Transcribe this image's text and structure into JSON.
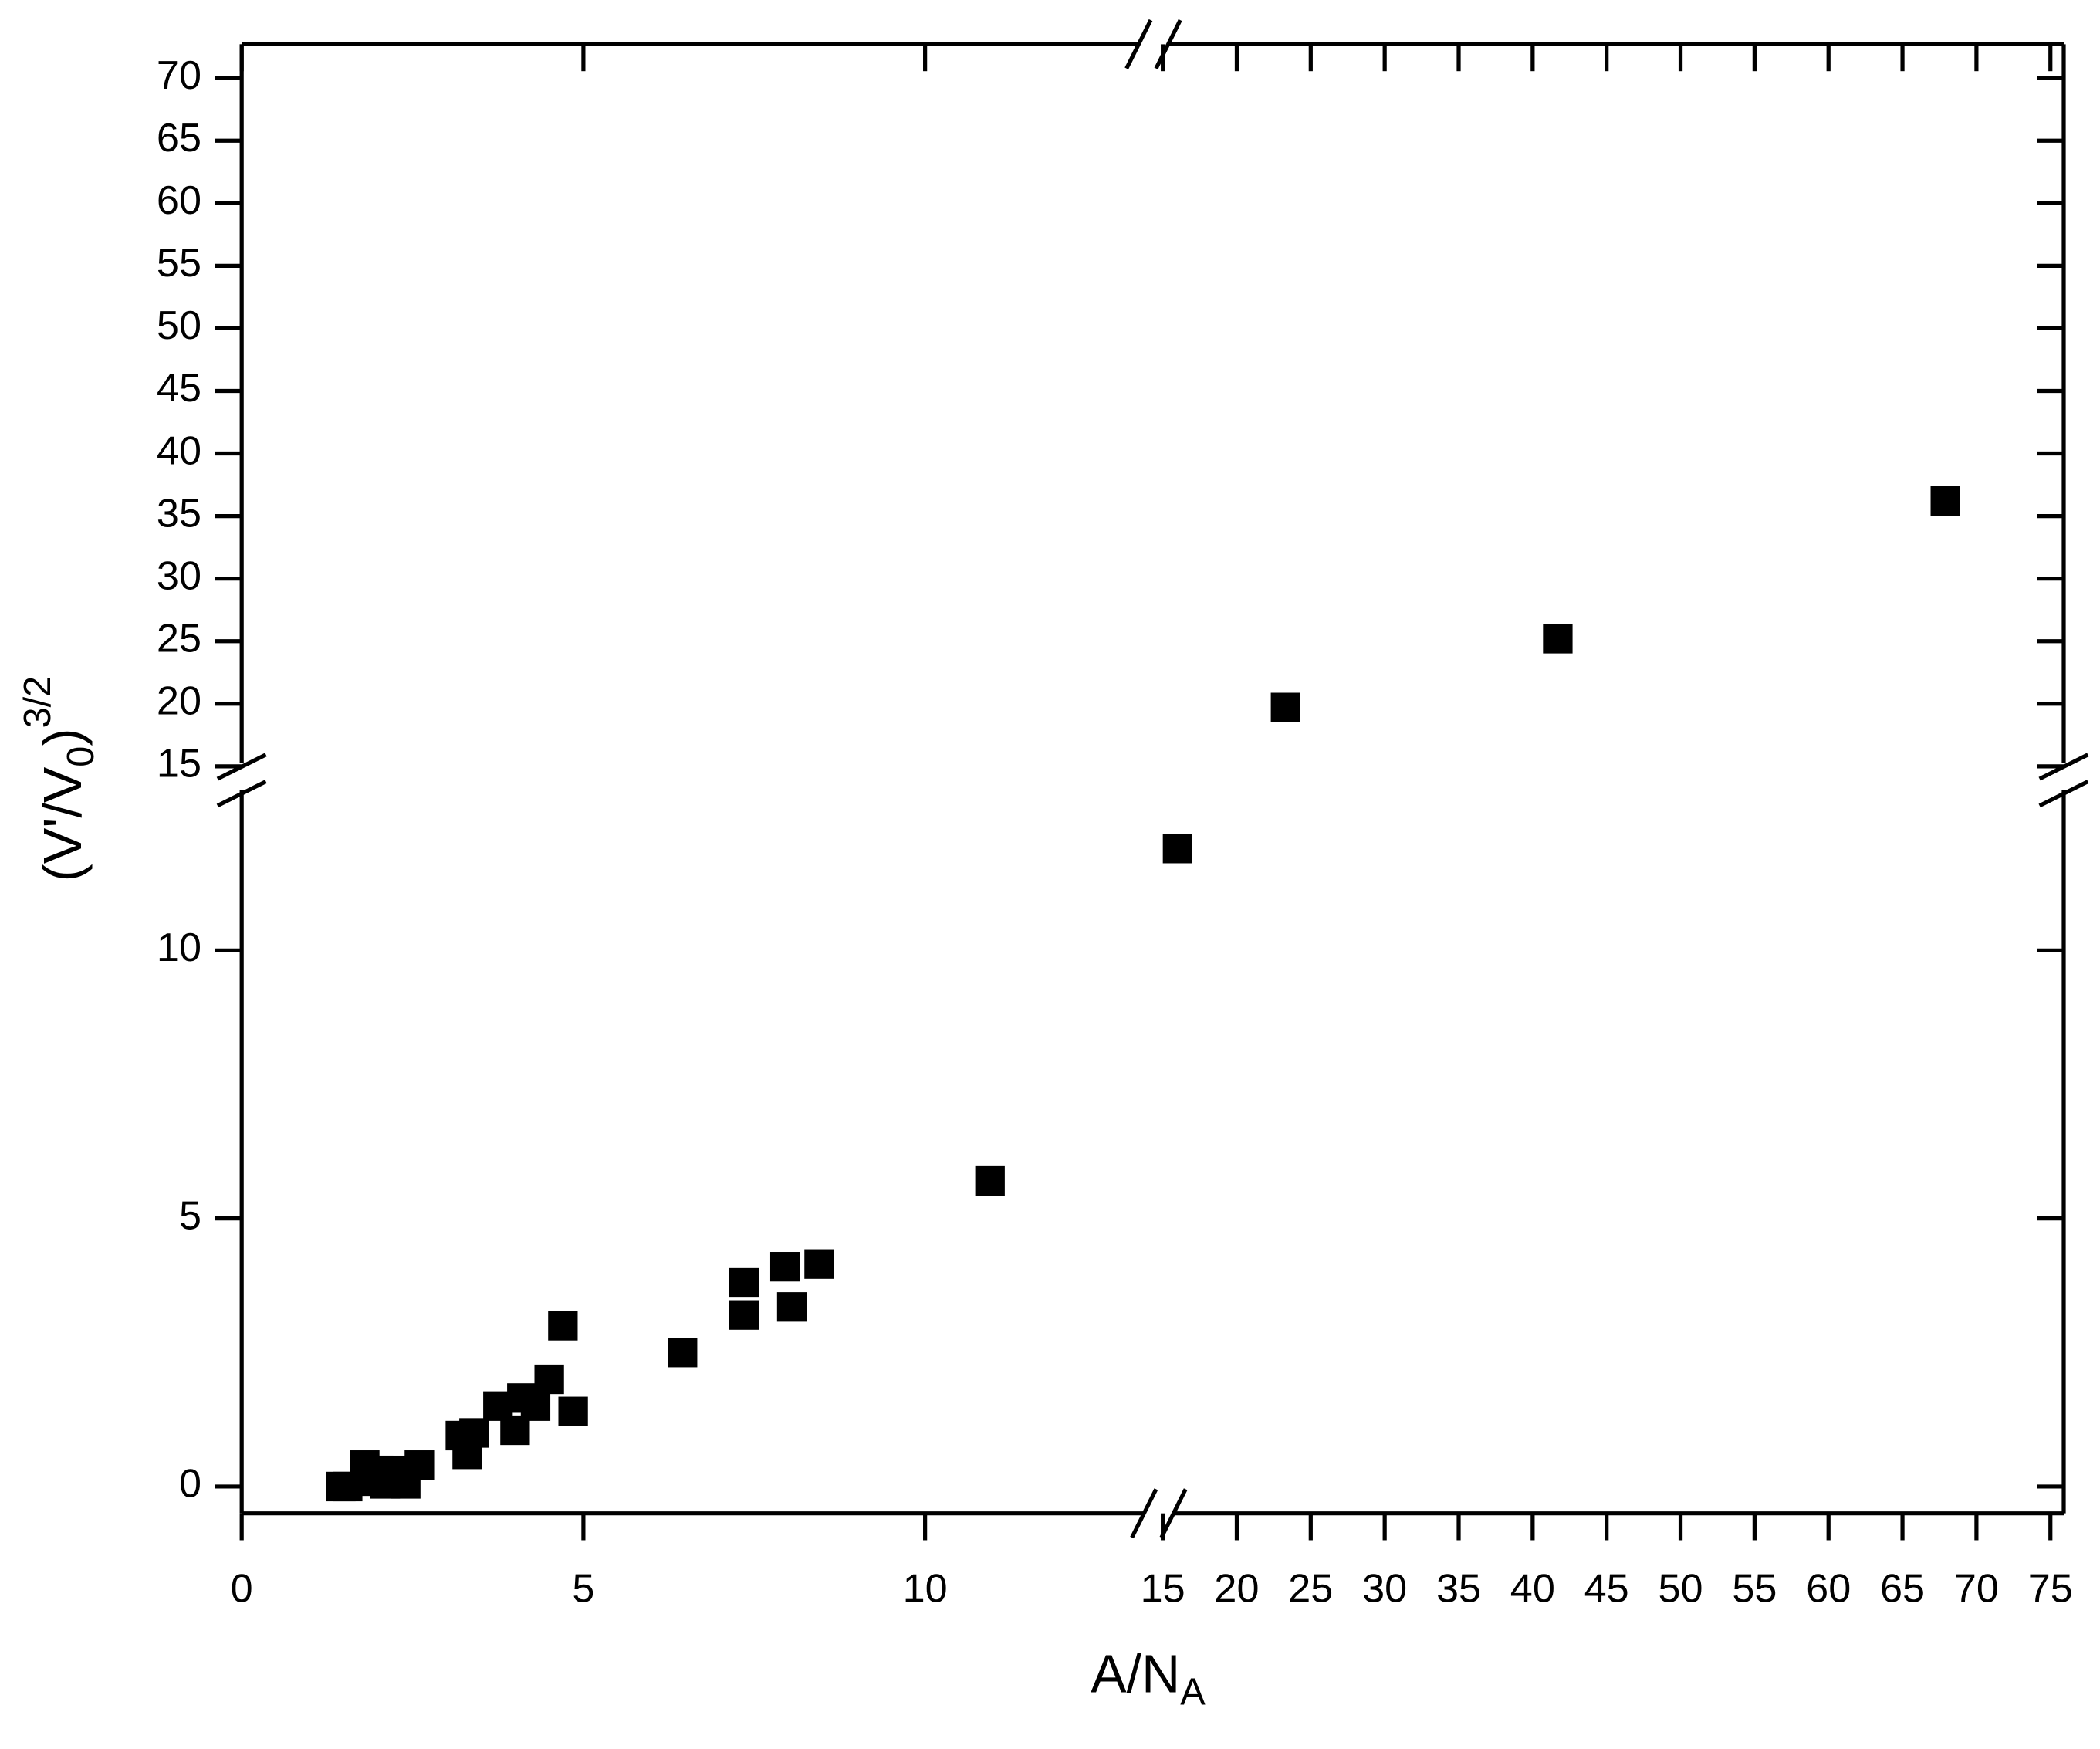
{
  "chart_data": {
    "type": "scatter",
    "xlabel": "A/N",
    "xlabel_sub": "A",
    "ylabel_parts": [
      "(V'/V",
      "0",
      ")",
      "3/2"
    ],
    "x_segments": [
      {
        "xlim": [
          0,
          13.4
        ],
        "xticks": [
          0,
          5,
          10
        ]
      },
      {
        "xlim": [
          15,
          75.9
        ],
        "xticks": [
          15,
          20,
          25,
          30,
          35,
          40,
          45,
          50,
          55,
          60,
          65,
          70,
          75
        ]
      }
    ],
    "y_segments": [
      {
        "ylim": [
          -0.5,
          13.2
        ],
        "yticks": [
          0,
          5,
          10
        ]
      },
      {
        "ylim": [
          14,
          72.7
        ],
        "yticks": [
          15,
          20,
          25,
          30,
          35,
          40,
          45,
          50,
          55,
          60,
          65,
          70
        ]
      }
    ],
    "series": [
      {
        "color": "#000000",
        "x": [
          1.45,
          1.55,
          1.8,
          1.9,
          2.0,
          2.1,
          2.2,
          2.4,
          2.6,
          3.2,
          3.3,
          3.4,
          3.75,
          4.0,
          4.1,
          4.3,
          4.5,
          4.7,
          4.85,
          6.45,
          7.35,
          7.35,
          7.95,
          8.05,
          8.45,
          10.95,
          16.0,
          23.3,
          41.7,
          67.9
        ],
        "values": [
          0.0,
          0.0,
          0.4,
          0.1,
          0.3,
          0.05,
          0.3,
          0.05,
          0.4,
          0.95,
          0.6,
          1.0,
          1.5,
          1.05,
          1.65,
          1.5,
          2.0,
          3.0,
          1.4,
          2.5,
          3.8,
          3.2,
          4.1,
          3.35,
          4.15,
          5.7,
          11.9,
          19.7,
          25.2,
          36.2
        ]
      }
    ]
  }
}
